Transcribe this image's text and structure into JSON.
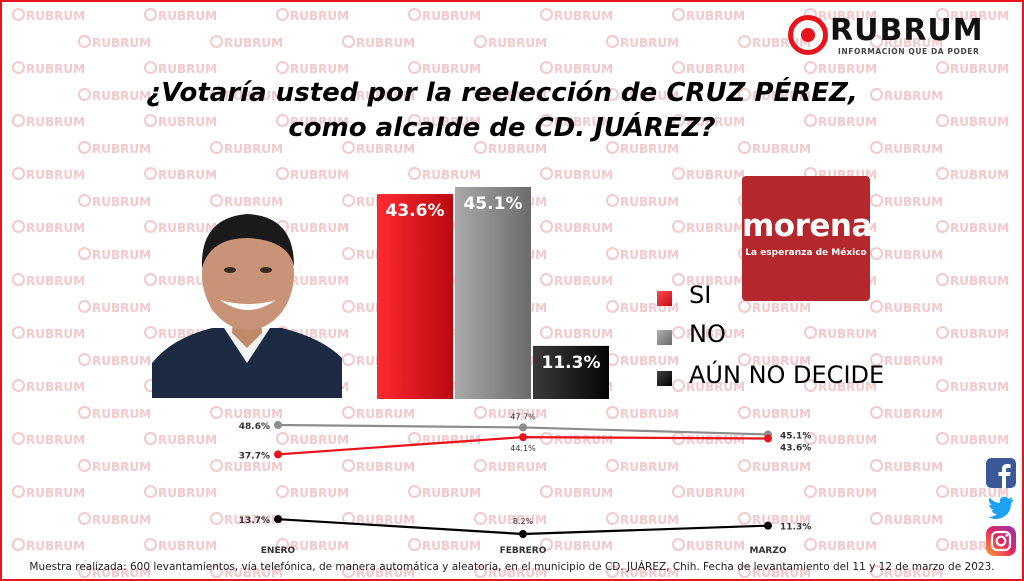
{
  "brand": {
    "name": "RUBRUM",
    "tagline": "INFORMACIÓN QUE DA PODER",
    "accent": "#e8141b"
  },
  "watermark_text": "RUBRUM",
  "title_line1": "¿Votaría usted por la reelección de CRUZ PÉREZ,",
  "title_line2": "como alcalde de CD. JUÁREZ?",
  "party_logo": {
    "name": "morena",
    "tagline": "La esperanza de México",
    "color": "#b3272d"
  },
  "legend": [
    {
      "label": "SI",
      "color": "#e8141b"
    },
    {
      "label": "NO",
      "color": "#8c8c8c"
    },
    {
      "label": "AÚN NO DECIDE",
      "color": "#1a1a1a"
    }
  ],
  "social_icons": [
    "facebook-icon",
    "twitter-icon",
    "instagram-icon"
  ],
  "footer": "Muestra realizada: 600 levantamientos, vía telefónica, de manera automática y aleatoria, en el municipio de CD. JUÁREZ, Chih. Fecha de levantamiento del 11 y 12 de marzo de 2023.",
  "chart_data": [
    {
      "type": "bar",
      "categories": [
        "SI",
        "NO",
        "AÚN NO DECIDE"
      ],
      "values": [
        43.6,
        45.1,
        11.3
      ],
      "value_labels": [
        "43.6%",
        "45.1%",
        "11.3%"
      ],
      "colors": [
        "#e8141b",
        "#8c8c8c",
        "#1a1a1a"
      ],
      "ylim": [
        0,
        45.1
      ]
    },
    {
      "type": "line",
      "x": [
        "ENERO",
        "FEBRERO",
        "MARZO"
      ],
      "series": [
        {
          "name": "NO",
          "values": [
            48.6,
            47.7,
            45.1
          ],
          "labels": [
            "48.6%",
            "47.7%",
            "45.1%"
          ],
          "color": "#8c8c8c"
        },
        {
          "name": "SI",
          "values": [
            37.7,
            44.1,
            43.6
          ],
          "labels": [
            "37.7%",
            "44.1%",
            "43.6%"
          ],
          "color": "#e8141b"
        },
        {
          "name": "AÚN NO DECIDE",
          "values": [
            13.7,
            8.2,
            11.3
          ],
          "labels": [
            "13.7%",
            "8.2%",
            "11.3%"
          ],
          "color": "#000000"
        }
      ]
    }
  ]
}
